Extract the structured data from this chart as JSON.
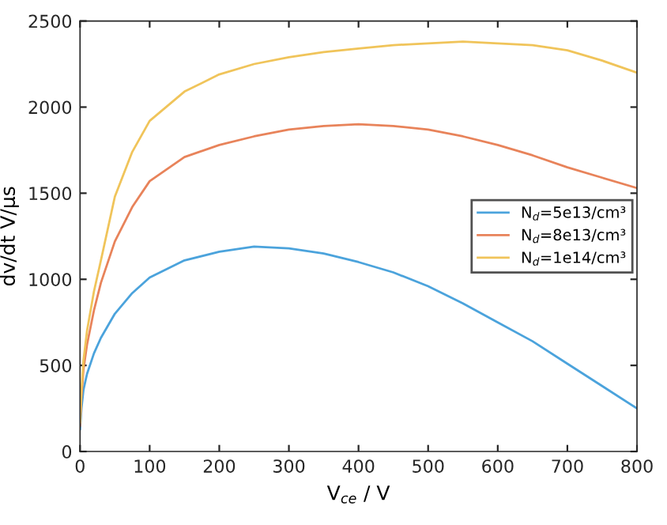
{
  "chart_data": {
    "type": "line",
    "xlabel": "V$_{ce}$ / V",
    "ylabel": "dv/dt V/μs",
    "x": [
      0,
      2,
      5,
      10,
      20,
      30,
      50,
      75,
      100,
      150,
      200,
      250,
      300,
      350,
      400,
      450,
      500,
      550,
      600,
      650,
      700,
      750,
      800
    ],
    "series": [
      {
        "name": "N$_{d}$=5e13/cm³",
        "color": "#4ba3dc",
        "values": [
          130,
          250,
          360,
          450,
          570,
          660,
          800,
          920,
          1010,
          1110,
          1160,
          1190,
          1180,
          1150,
          1100,
          1040,
          960,
          860,
          750,
          640,
          510,
          380,
          250
        ]
      },
      {
        "name": "N$_{d}$=8e13/cm³",
        "color": "#e8835a",
        "values": [
          150,
          320,
          480,
          620,
          820,
          980,
          1220,
          1420,
          1570,
          1710,
          1780,
          1830,
          1870,
          1890,
          1900,
          1890,
          1870,
          1830,
          1780,
          1720,
          1650,
          1590,
          1530
        ]
      },
      {
        "name": "N$_{d}$=1e14/cm³",
        "color": "#f0c45a",
        "values": [
          170,
          350,
          530,
          700,
          930,
          1110,
          1480,
          1740,
          1920,
          2090,
          2190,
          2250,
          2290,
          2320,
          2340,
          2360,
          2370,
          2380,
          2370,
          2360,
          2330,
          2270,
          2200
        ]
      }
    ],
    "xlim": [
      0,
      800
    ],
    "xticks": [
      0,
      100,
      200,
      300,
      400,
      500,
      600,
      700,
      800
    ],
    "ylim": [
      0,
      2500
    ],
    "yticks": [
      0,
      500,
      1000,
      1500,
      2000,
      2500
    ],
    "grid": false,
    "legend": "right",
    "marker": "none",
    "line_style": "solid"
  }
}
